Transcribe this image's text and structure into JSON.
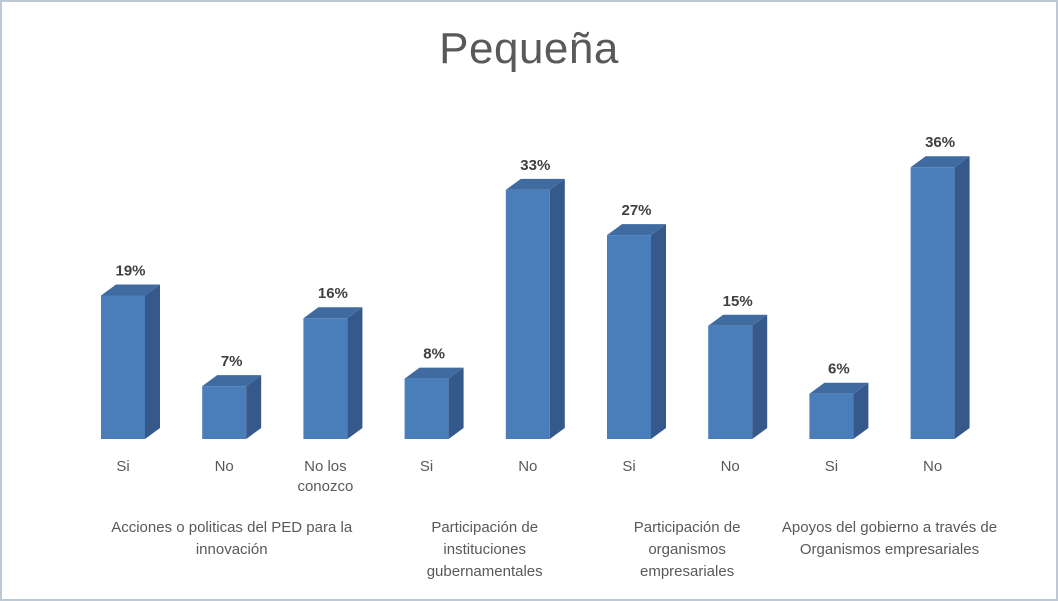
{
  "title": "Pequeña",
  "chart_data": {
    "type": "bar",
    "title": "Pequeña",
    "xlabel": "",
    "ylabel": "",
    "ylim": [
      0,
      40
    ],
    "grid": false,
    "legend": false,
    "data_labels": true,
    "value_suffix": "%",
    "style": "3d-column",
    "groups": [
      {
        "label": "Acciones o politicas del PED para la innovación",
        "bars": [
          {
            "category": "Si",
            "value": 19
          },
          {
            "category": "No",
            "value": 7
          },
          {
            "category": "No los conozco",
            "value": 16
          }
        ]
      },
      {
        "label": "Participación de instituciones gubernamentales",
        "bars": [
          {
            "category": "Si",
            "value": 8
          },
          {
            "category": "No",
            "value": 33
          }
        ]
      },
      {
        "label": "Participación de organismos empresariales",
        "bars": [
          {
            "category": "Si",
            "value": 27
          },
          {
            "category": "No",
            "value": 15
          }
        ]
      },
      {
        "label": "Apoyos del gobierno a través de Organismos empresariales",
        "bars": [
          {
            "category": "Si",
            "value": 6
          },
          {
            "category": "No",
            "value": 36
          }
        ]
      }
    ],
    "colors": {
      "bar_front": "#4a7ebb",
      "bar_side": "#36598c",
      "bar_top": "#3f6ba0",
      "label_text": "#404040",
      "axis_text": "#595959",
      "title_text": "#595959",
      "border": "#bcc9d4"
    }
  }
}
